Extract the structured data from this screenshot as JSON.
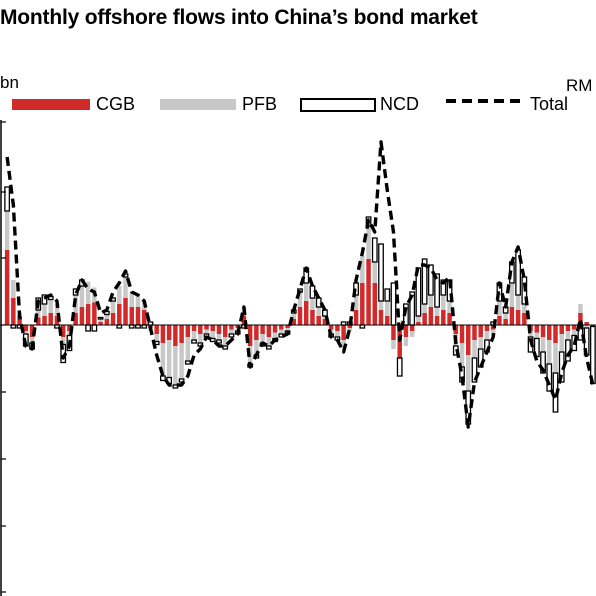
{
  "title": "Monthly offshore flows into China’s bond market",
  "unit_left": "bn",
  "unit_right": "RM",
  "colors": {
    "cgb": "#d12a2a",
    "pfb": "#c8c8c8",
    "ncd_fill": "#ffffff",
    "ncd_stroke": "#000000",
    "total": "#000000"
  },
  "chart_data": {
    "type": "bar",
    "stacked": true,
    "xlabel": "",
    "ylabel": "bn",
    "y2label": "RM",
    "legend_position": "top",
    "grid": false,
    "series": [
      {
        "name": "CGB",
        "kind": "bar",
        "values": [
          50,
          18,
          6,
          -4,
          -8,
          5,
          6,
          8,
          6,
          -8,
          -4,
          8,
          12,
          14,
          15,
          2,
          4,
          8,
          14,
          18,
          12,
          12,
          10,
          -2,
          -6,
          -12,
          -10,
          -14,
          -12,
          -8,
          -4,
          -6,
          -3,
          -4,
          -6,
          -8,
          -3,
          -2,
          6,
          -14,
          -10,
          -6,
          -8,
          -5,
          -3,
          -2,
          4,
          12,
          16,
          10,
          6,
          4,
          -3,
          -4,
          -10,
          -2,
          10,
          28,
          44,
          28,
          10,
          6,
          -10,
          -22,
          -8,
          -4,
          2,
          8,
          12,
          6,
          10,
          8,
          -6,
          -12,
          -20,
          -10,
          -8,
          -4,
          -3,
          6,
          4,
          12,
          10,
          8,
          -4,
          -5,
          -8,
          -10,
          -12,
          -6,
          -4,
          -3,
          8,
          2,
          -1
        ]
      },
      {
        "name": "PFB",
        "kind": "bar",
        "values": [
          26,
          12,
          2,
          -2,
          -4,
          5,
          8,
          9,
          8,
          -5,
          -3,
          12,
          14,
          15,
          10,
          2,
          3,
          8,
          12,
          14,
          10,
          8,
          6,
          -2,
          -5,
          -22,
          -25,
          -26,
          -24,
          -16,
          -6,
          -6,
          -3,
          -5,
          -4,
          -6,
          -3,
          -2,
          6,
          -12,
          -10,
          -6,
          -6,
          -4,
          -3,
          -2,
          4,
          10,
          12,
          8,
          6,
          2,
          -3,
          -4,
          -6,
          -2,
          10,
          18,
          22,
          14,
          6,
          10,
          -6,
          0,
          -6,
          -4,
          4,
          6,
          8,
          6,
          10,
          8,
          -8,
          -16,
          -24,
          -12,
          -8,
          -6,
          -4,
          10,
          4,
          16,
          10,
          6,
          -4,
          -4,
          -10,
          -16,
          -20,
          -12,
          -6,
          -4,
          6,
          -2,
          0
        ]
      },
      {
        "name": "NCD",
        "kind": "bar",
        "values": [
          16,
          -2,
          -2,
          -8,
          -4,
          8,
          6,
          2,
          -2,
          -12,
          -10,
          4,
          4,
          -4,
          -4,
          1,
          2,
          2,
          -2,
          2,
          -2,
          -2,
          -2,
          2,
          -2,
          -3,
          -4,
          -2,
          -2,
          -2,
          -2,
          -2,
          -2,
          -2,
          -2,
          -2,
          -2,
          -2,
          -2,
          -2,
          -2,
          -2,
          -2,
          -2,
          -2,
          -2,
          2,
          2,
          10,
          8,
          6,
          4,
          -2,
          -2,
          2,
          2,
          8,
          -2,
          6,
          16,
          38,
          8,
          28,
          -12,
          14,
          22,
          32,
          30,
          20,
          22,
          10,
          14,
          -6,
          -10,
          -22,
          -16,
          -12,
          -8,
          2,
          12,
          4,
          14,
          30,
          18,
          -10,
          -12,
          -14,
          -18,
          -26,
          -20,
          -14,
          -10,
          -10,
          -18,
          -38
        ]
      },
      {
        "name": "Total",
        "kind": "line",
        "values": [
          112,
          80,
          6,
          -14,
          -16,
          16,
          18,
          20,
          16,
          -22,
          -14,
          20,
          30,
          24,
          22,
          8,
          10,
          22,
          28,
          36,
          22,
          20,
          16,
          -2,
          -20,
          -34,
          -40,
          -40,
          -40,
          -34,
          -20,
          -16,
          -8,
          -10,
          -14,
          -14,
          -10,
          -6,
          12,
          -28,
          -20,
          -12,
          -14,
          -10,
          -8,
          -6,
          10,
          24,
          38,
          26,
          18,
          10,
          -8,
          -10,
          -18,
          -2,
          30,
          48,
          70,
          62,
          122,
          90,
          62,
          -10,
          12,
          20,
          40,
          40,
          38,
          30,
          28,
          32,
          -12,
          -34,
          -68,
          -38,
          -28,
          -18,
          -8,
          28,
          12,
          42,
          52,
          30,
          -10,
          -24,
          -30,
          -40,
          -50,
          -32,
          -20,
          -14,
          4,
          -22,
          -40
        ]
      }
    ]
  }
}
